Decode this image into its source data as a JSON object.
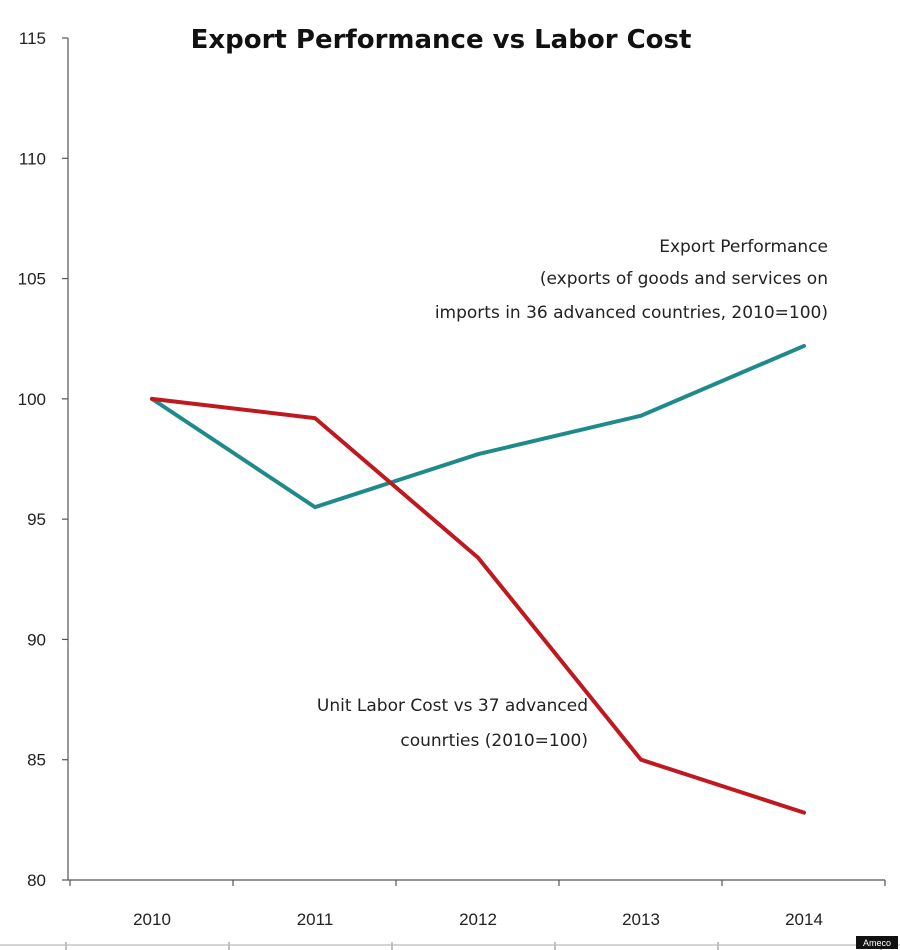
{
  "chart_data": {
    "type": "line",
    "title": "Export Performance vs Labor Cost",
    "categories": [
      "2010",
      "2011",
      "2012",
      "2013",
      "2014"
    ],
    "ylim": [
      80,
      115
    ],
    "yticks": [
      80,
      85,
      90,
      95,
      100,
      105,
      110,
      115
    ],
    "series": [
      {
        "name": "Export Performance",
        "color": "#1f8a8a",
        "values": [
          100,
          95.5,
          97.7,
          99.3,
          102.2
        ]
      },
      {
        "name": "Unit Labor Cost",
        "color": "#c0181f",
        "values": [
          100,
          99.2,
          93.4,
          85.0,
          82.8
        ]
      }
    ],
    "annotations": {
      "export": [
        "Export Performance",
        "(exports of goods and services on",
        "imports in 36 advanced countries, 2010=100)"
      ],
      "labor": [
        "Unit Labor Cost vs 37 advanced",
        "counrties (2010=100)"
      ]
    },
    "credit": "Ameco"
  }
}
